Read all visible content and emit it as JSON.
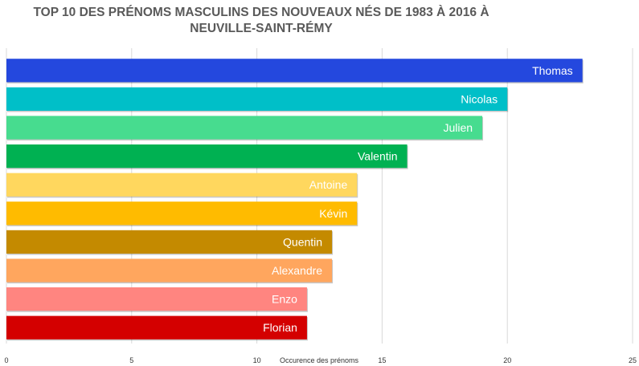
{
  "chart_data": {
    "type": "bar",
    "orientation": "horizontal",
    "title": "TOP 10 DES PRÉNOMS MASCULINS DES NOUVEAUX NÉS DE 1983 À 2016 À NEUVILLE-SAINT-RÉMY",
    "xlabel": "Occurence des prénoms",
    "ylabel": "",
    "xlim": [
      0,
      25
    ],
    "xticks": [
      0,
      5,
      10,
      15,
      20,
      25
    ],
    "grid": true,
    "legend": "none",
    "categories": [
      "Thomas",
      "Nicolas",
      "Julien",
      "Valentin",
      "Antoine",
      "Kévin",
      "Quentin",
      "Alexandre",
      "Enzo",
      "Florian"
    ],
    "values": [
      23,
      20,
      19,
      16,
      14,
      14,
      13,
      13,
      12,
      12
    ],
    "colors": [
      "#2448de",
      "#00bfc8",
      "#47dc8f",
      "#00b152",
      "#ffd75e",
      "#ffbb00",
      "#c48a00",
      "#ffa65e",
      "#ff8580",
      "#d40000"
    ]
  }
}
